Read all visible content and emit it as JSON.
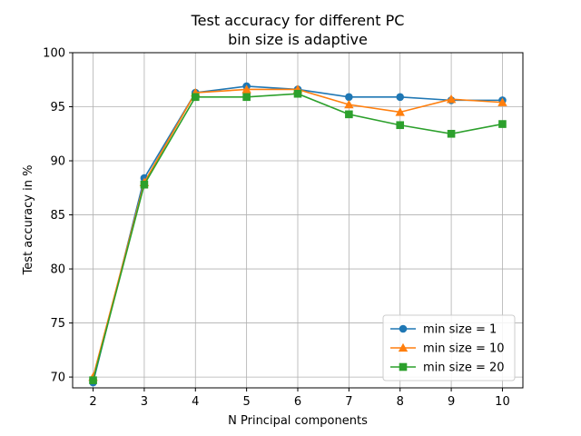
{
  "chart_data": {
    "type": "line",
    "title": [
      "Test accuracy for different PC",
      "bin size is adaptive"
    ],
    "xlabel": "N Principal components",
    "ylabel": "Test accuracy in %",
    "x": [
      2,
      3,
      4,
      5,
      6,
      7,
      8,
      9,
      10
    ],
    "xlim": [
      1.6,
      10.4
    ],
    "ylim": [
      69.0,
      100.0
    ],
    "xticks": [
      "2",
      "3",
      "4",
      "5",
      "6",
      "7",
      "8",
      "9",
      "10"
    ],
    "yticks": [
      "70",
      "75",
      "80",
      "85",
      "90",
      "95",
      "100"
    ],
    "grid": true,
    "legend_position": "lower-right",
    "series": [
      {
        "name": "min size = 1",
        "color": "#1f77b4",
        "marker": "circle",
        "values": [
          69.5,
          88.4,
          96.3,
          96.9,
          96.6,
          95.9,
          95.9,
          95.6,
          95.6
        ]
      },
      {
        "name": "min size = 10",
        "color": "#ff7f0e",
        "marker": "triangle",
        "values": [
          70.0,
          88.0,
          96.3,
          96.6,
          96.6,
          95.2,
          94.5,
          95.7,
          95.4
        ]
      },
      {
        "name": "min size = 20",
        "color": "#2ca02c",
        "marker": "square",
        "values": [
          69.7,
          87.8,
          95.9,
          95.9,
          96.2,
          94.3,
          93.3,
          92.5,
          93.4
        ]
      }
    ]
  }
}
